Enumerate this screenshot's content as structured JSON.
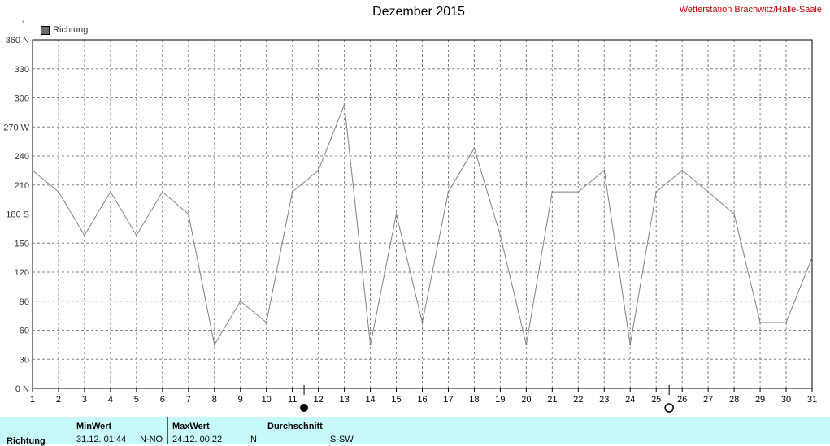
{
  "header": {
    "title": "Dezember 2015",
    "station": "Wetterstation Brachwitz/Halle-Saale"
  },
  "legend": {
    "label": "Richtung",
    "degree_symbol": "°"
  },
  "stats": {
    "row_label": "Richtung",
    "min": {
      "header": "MinWert",
      "time": "31.12.  01:44",
      "value": "N-NO"
    },
    "max": {
      "header": "MaxWert",
      "time": "24.12.  00:22",
      "value": "N"
    },
    "avg": {
      "header": "Durchschnitt",
      "value": "S-SW"
    }
  },
  "chart_data": {
    "type": "line",
    "title": "Dezember 2015",
    "x": [
      1,
      2,
      3,
      4,
      5,
      6,
      7,
      8,
      9,
      10,
      11,
      12,
      13,
      14,
      15,
      16,
      17,
      18,
      19,
      20,
      21,
      22,
      23,
      24,
      25,
      26,
      27,
      28,
      29,
      30,
      31
    ],
    "series": [
      {
        "name": "Richtung",
        "values": [
          225,
          203,
          158,
          203,
          158,
          203,
          180,
          45,
          90,
          68,
          203,
          225,
          293,
          45,
          180,
          68,
          203,
          248,
          158,
          45,
          203,
          203,
          225,
          45,
          203,
          225,
          203,
          180,
          68,
          68,
          135
        ]
      }
    ],
    "xlim": [
      1,
      31
    ],
    "ylim": [
      0,
      360
    ],
    "y_ticks": [
      0,
      30,
      60,
      90,
      120,
      150,
      180,
      210,
      240,
      270,
      300,
      330,
      360
    ],
    "y_tick_labels": [
      "0 N",
      "30",
      "60",
      "90",
      "120",
      "150",
      "180 S",
      "210",
      "240",
      "270 W",
      "300",
      "330",
      "360 N"
    ],
    "x_tick_labels": [
      "1",
      "2",
      "3",
      "4",
      "5",
      "6",
      "7",
      "8",
      "9",
      "10",
      "11",
      "12",
      "13",
      "14",
      "15",
      "16",
      "17",
      "18",
      "19",
      "20",
      "21",
      "22",
      "23",
      "24",
      "25",
      "26",
      "27",
      "28",
      "29",
      "30",
      "31"
    ],
    "moon_markers": [
      {
        "x": 11.45,
        "phase": "new-moon"
      },
      {
        "x": 25.5,
        "phase": "full-moon"
      }
    ],
    "grid": true,
    "line_color": "#808080",
    "grid_color": "#808080",
    "stats_background": "#c8fafc",
    "station_color": "#c00000"
  }
}
